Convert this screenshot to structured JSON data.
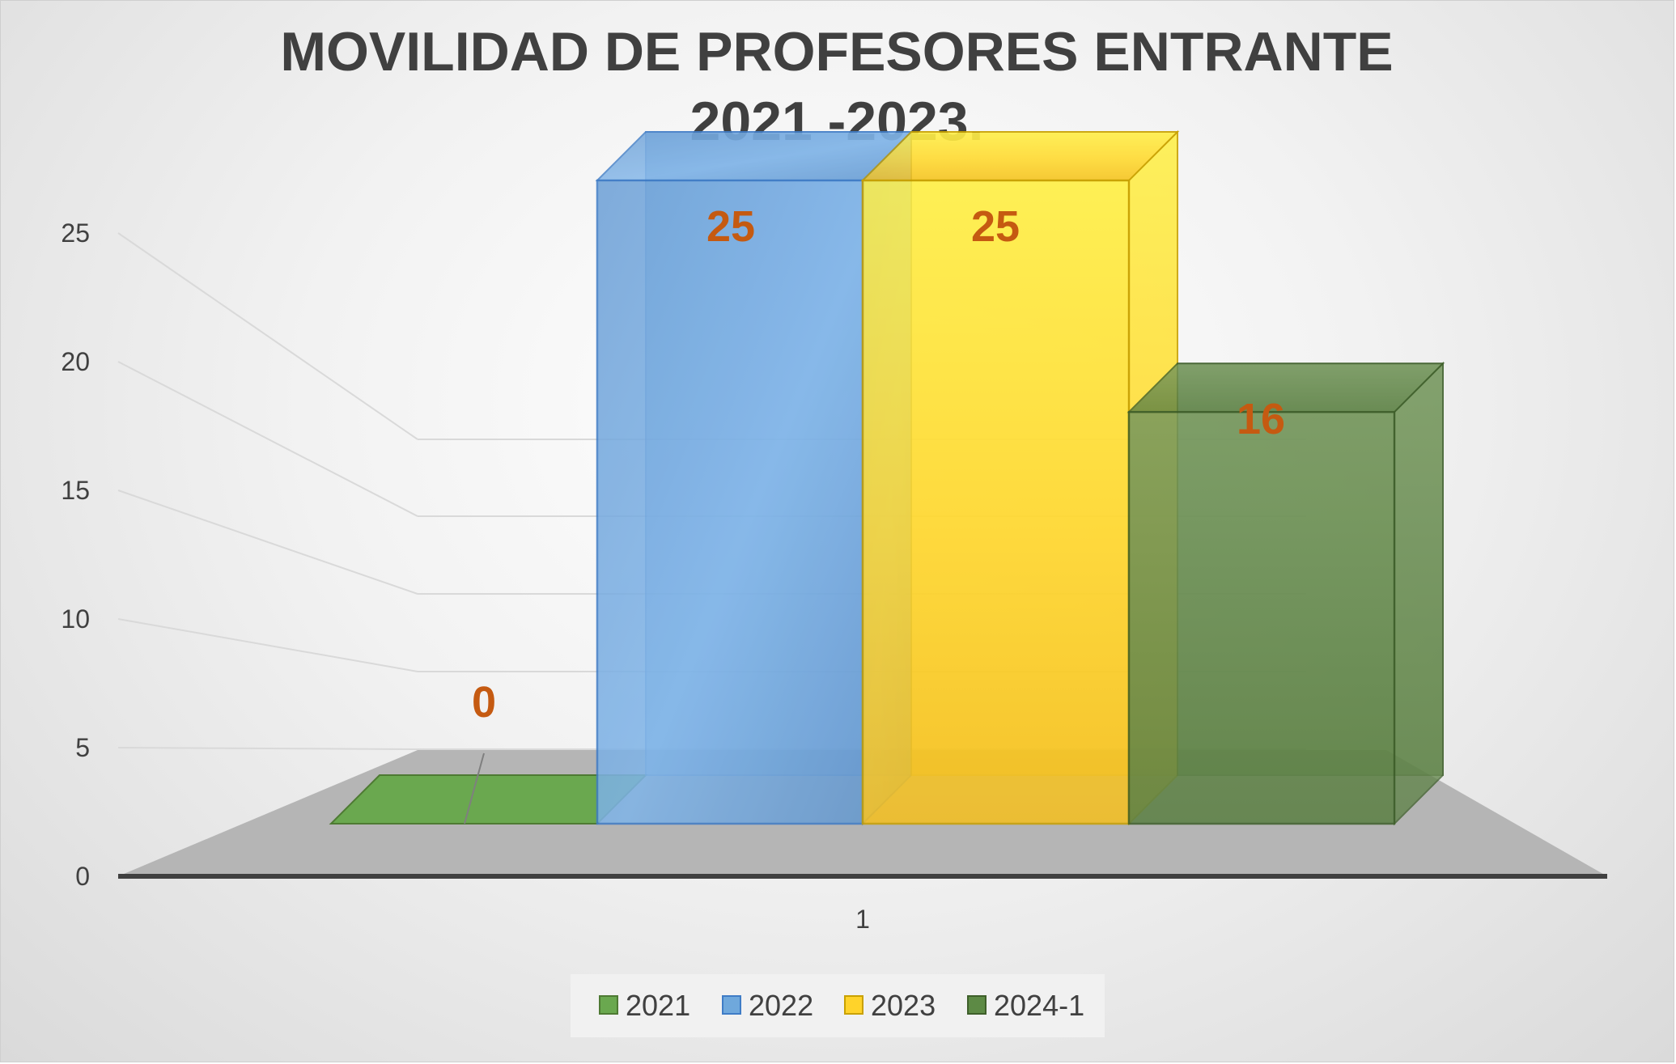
{
  "chart_data": {
    "type": "bar",
    "title_lines": [
      "MOVILIDAD DE PROFESORES ENTRANTE",
      "2021 -2023."
    ],
    "categories": [
      "1"
    ],
    "series": [
      {
        "name": "2021",
        "values": [
          0
        ],
        "color": "#6aa84f"
      },
      {
        "name": "2022",
        "values": [
          25
        ],
        "color": "#6fa8dc"
      },
      {
        "name": "2023",
        "values": [
          25
        ],
        "color": "#ffd32a"
      },
      {
        "name": "2024-1",
        "values": [
          16
        ],
        "color": "#5d8a45"
      }
    ],
    "y_ticks": [
      0,
      5,
      10,
      15,
      20,
      25
    ],
    "ylim": [
      0,
      25
    ],
    "data_label_color": "#c55a11",
    "grid": true,
    "legend_position": "bottom",
    "style": "3d-column"
  }
}
